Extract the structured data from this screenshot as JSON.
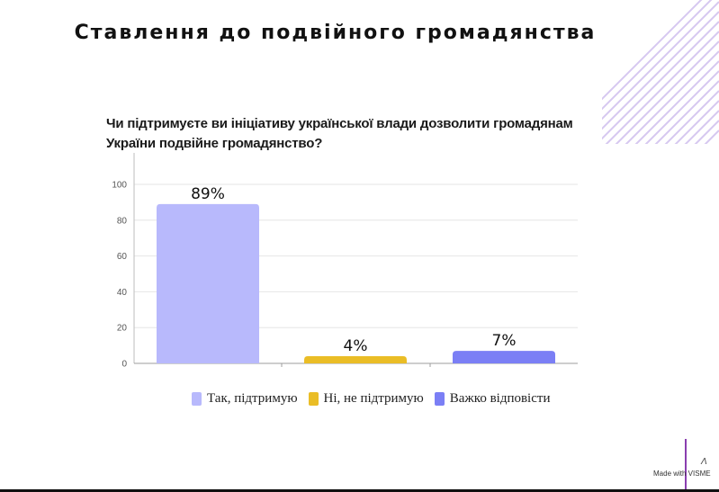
{
  "page": {
    "title": "Ставлення до подвійного громадянства",
    "question": "Чи підтримуєте ви ініціативу української влади дозволити громадянам України подвійне громадянство?",
    "made_with": "Made with VISME",
    "mark": "Λ"
  },
  "colors": {
    "yes": "#b8b9fc",
    "no": "#eabd26",
    "hard": "#7b7ff5",
    "decor": "#d6c8f0"
  },
  "chart_data": {
    "type": "bar",
    "categories": [
      "Так, підтримую",
      "Ні, не підтримую",
      "Важко відповісти"
    ],
    "values": [
      89,
      4,
      7
    ],
    "data_labels": [
      "89%",
      "4%",
      "7%"
    ],
    "yticks": [
      "0",
      "20",
      "40",
      "60",
      "80",
      "100"
    ],
    "ylim": [
      0,
      100
    ],
    "grid": true,
    "legend_position": "bottom"
  }
}
